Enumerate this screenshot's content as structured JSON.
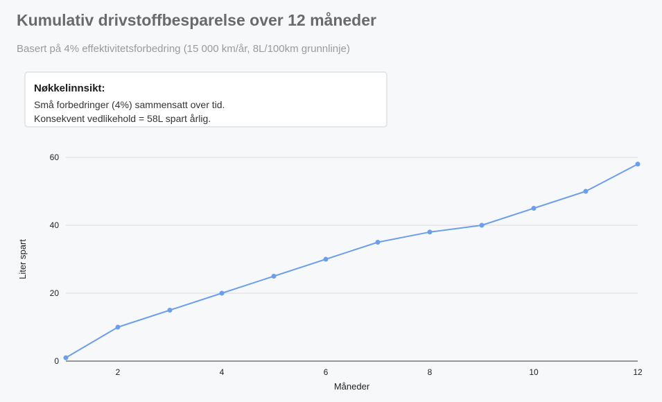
{
  "header": {
    "title": "Kumulativ drivstoffbesparelse over 12 måneder",
    "subtitle": "Basert på 4% effektivitetsforbedring (15 000 km/år, 8L/100km grunnlinje)"
  },
  "insight": {
    "heading": "Nøkkelinnsikt:",
    "lines": [
      "Små forbedringer (4%) sammensatt over tid.",
      "Konsekvent vedlikehold = 58L spart årlig."
    ]
  },
  "chart_data": {
    "type": "line",
    "title": "Kumulativ drivstoffbesparelse over 12 måneder",
    "subtitle": "Basert på 4% effektivitetsforbedring (15 000 km/år, 8L/100km grunnlinje)",
    "xlabel": "Måneder",
    "ylabel": "Liter spart",
    "x": [
      1,
      2,
      3,
      4,
      5,
      6,
      7,
      8,
      9,
      10,
      11,
      12
    ],
    "series": [
      {
        "values": [
          1,
          10,
          15,
          20,
          25,
          30,
          35,
          38,
          40,
          45,
          50,
          58
        ],
        "color": "#6d9eeb"
      }
    ],
    "xlim": [
      1,
      12
    ],
    "ylim": [
      0,
      60
    ],
    "xticks": [
      2,
      4,
      6,
      8,
      10,
      12
    ],
    "yticks": [
      0,
      20,
      40,
      60
    ],
    "grid": "horizontal",
    "legend": "none",
    "colors": {
      "line": "#6d9eeb",
      "grid": "#dddddd",
      "axis": "#333333"
    }
  }
}
